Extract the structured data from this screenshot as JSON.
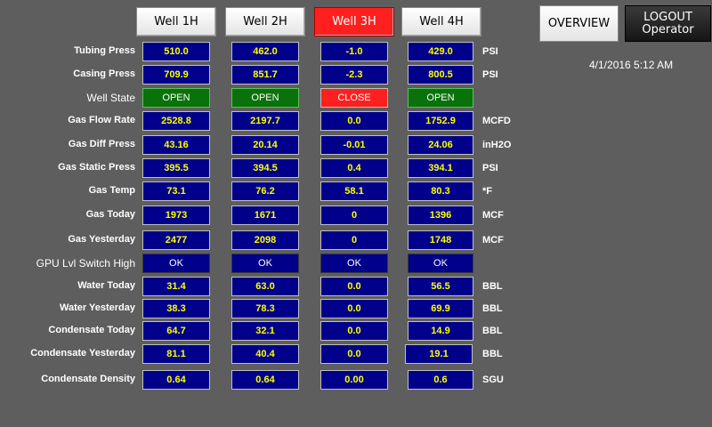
{
  "wells": [
    "Well 1H",
    "Well 2H",
    "Well 3H",
    "Well 4H"
  ],
  "active_well": "Well 3H",
  "overview_label": "OVERVIEW",
  "logout_label": "LOGOUT",
  "logout_user": "Operator",
  "datetime": "4/1/2016 5:12 AM",
  "rows": [
    {
      "label": "Tubing Press",
      "unit": "PSI",
      "values": [
        "510.0",
        "462.0",
        "-1.0",
        "429.0"
      ]
    },
    {
      "label": "Casing Press",
      "unit": "PSI",
      "values": [
        "709.9",
        "851.7",
        "-2.3",
        "800.5"
      ]
    },
    {
      "label": "Well State",
      "unit": "",
      "values": [
        "OPEN",
        "OPEN",
        "CLOSE",
        "OPEN"
      ]
    },
    {
      "label": "Gas Flow Rate",
      "unit": "MCFD",
      "values": [
        "2528.8",
        "2197.7",
        "0.0",
        "1752.9"
      ]
    },
    {
      "label": "Gas Diff Press",
      "unit": "inH2O",
      "values": [
        "43.16",
        "20.14",
        "-0.01",
        "24.06"
      ]
    },
    {
      "label": "Gas Static Press",
      "unit": "PSI",
      "values": [
        "395.5",
        "394.5",
        "0.4",
        "394.1"
      ]
    },
    {
      "label": "Gas Temp",
      "unit": "*F",
      "values": [
        "73.1",
        "76.2",
        "58.1",
        "80.3"
      ]
    },
    {
      "label": "Gas Today",
      "unit": "MCF",
      "values": [
        "1973",
        "1671",
        "0",
        "1396"
      ]
    },
    {
      "label": "Gas Yesterday",
      "unit": "MCF",
      "values": [
        "2477",
        "2098",
        "0",
        "1748"
      ]
    },
    {
      "label": "GPU Lvl Switch High",
      "unit": "",
      "values": [
        "OK",
        "OK",
        "OK",
        "OK"
      ]
    },
    {
      "label": "Water Today",
      "unit": "BBL",
      "values": [
        "31.4",
        "63.0",
        "0.0",
        "56.5"
      ]
    },
    {
      "label": "Water Yesterday",
      "unit": "BBL",
      "values": [
        "38.3",
        "78.3",
        "0.0",
        "69.9"
      ]
    },
    {
      "label": "Condensate Today",
      "unit": "BBL",
      "values": [
        "64.7",
        "32.1",
        "0.0",
        "14.9"
      ]
    },
    {
      "label": "Condensate Yesterday",
      "unit": "BBL",
      "values": [
        "81.1",
        "40.4",
        "0.0",
        "19.1"
      ]
    },
    {
      "label": "Condensate Density",
      "unit": "SGU",
      "values": [
        "0.64",
        "0.64",
        "0.00",
        "0.6"
      ]
    }
  ],
  "colors": {
    "background": "#5e5e5e",
    "cell": "#00008a",
    "value_text": "#ffff00",
    "open": "#0a720a",
    "close": "#ff1f1f",
    "active_tab": "#ff1f1f"
  }
}
